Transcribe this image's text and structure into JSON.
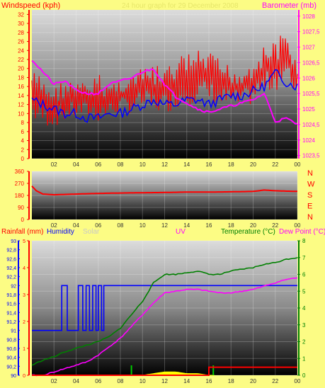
{
  "header": {
    "windspeed_label": "Windspeed (kph)",
    "title": "24 hour graph for 29 December 2008",
    "barometer_label": "Barometer (mb)"
  },
  "bottom_legend": {
    "rainfall": "Rainfall (mm)",
    "humidity": "Humidity",
    "solar": "Solar",
    "uv": "UV",
    "temperature": "Temperature (°C)",
    "dewpoint": "Dew Point (°C)"
  },
  "colors": {
    "background": "#fcfc84",
    "windspeed": "#ff0000",
    "wind_average": "#0000ff",
    "barometer": "#ff00ff",
    "wind_direction": "#ff0000",
    "rainfall": "#ff0000",
    "humidity": "#0000ff",
    "uv": "#ffff00",
    "temperature": "#008000",
    "dewpoint": "#ff00ff",
    "solar": "#c8c8c8"
  },
  "x_ticks": [
    "02",
    "04",
    "06",
    "08",
    "10",
    "12",
    "14",
    "16",
    "18",
    "20",
    "22",
    "00"
  ],
  "chart_data": [
    {
      "type": "line",
      "name": "wind-and-pressure",
      "x_hours": [
        0,
        1,
        2,
        3,
        4,
        5,
        6,
        7,
        8,
        9,
        10,
        11,
        12,
        13,
        14,
        15,
        16,
        17,
        18,
        19,
        20,
        21,
        22,
        23,
        24
      ],
      "series": [
        {
          "name": "Windspeed (kph)",
          "axis": "left",
          "gust_high": [
            20,
            18,
            16,
            18,
            17,
            17,
            19,
            17,
            18,
            19,
            20,
            21,
            20,
            22,
            24,
            24,
            24,
            22,
            21,
            20,
            23,
            25,
            27,
            28,
            22
          ],
          "gust_low": [
            8,
            7,
            7,
            8,
            9,
            9,
            8,
            9,
            10,
            10,
            11,
            10,
            10,
            11,
            12,
            12,
            12,
            11,
            11,
            11,
            12,
            14,
            15,
            16,
            14
          ]
        },
        {
          "name": "Wind average",
          "axis": "left",
          "values": [
            13,
            12,
            11,
            10,
            10,
            9,
            9,
            10,
            10,
            11,
            12,
            13,
            12,
            12,
            13,
            13,
            12,
            13,
            14,
            14,
            15,
            16,
            19,
            17,
            16
          ]
        },
        {
          "name": "Barometer (mb)",
          "axis": "right",
          "values": [
            1026.6,
            1026.2,
            1025.8,
            1025.9,
            1025.6,
            1025.5,
            1025.5,
            1025.8,
            1025.9,
            1026.0,
            1026.2,
            1026.3,
            1025.8,
            1025.4,
            1025.2,
            1025.0,
            1024.9,
            1025.0,
            1025.1,
            1025.2,
            1025.3,
            1025.5,
            1024.6,
            1024.7,
            1024.5
          ]
        }
      ],
      "y_left_ticks": [
        "0",
        "2",
        "4",
        "6",
        "8",
        "10",
        "12",
        "14",
        "16",
        "18",
        "20",
        "22",
        "24",
        "26",
        "28",
        "30",
        "32"
      ],
      "y_right_ticks": [
        "1023,5",
        "1024",
        "1024,5",
        "1025",
        "1025,5",
        "1026",
        "1026,5",
        "1027",
        "1027,5",
        "1028"
      ],
      "ylim_left": [
        0,
        33
      ],
      "ylim_right": [
        1023.4,
        1028.2
      ]
    },
    {
      "type": "line",
      "name": "wind-direction",
      "x_hours": [
        0,
        0.4,
        1,
        2,
        4,
        6,
        8,
        10,
        12,
        14,
        16,
        18,
        20,
        21,
        22,
        23,
        24
      ],
      "series": [
        {
          "name": "Wind direction",
          "values": [
            250,
            215,
            190,
            185,
            190,
            195,
            198,
            200,
            202,
            205,
            205,
            207,
            210,
            220,
            215,
            212,
            210
          ]
        }
      ],
      "y_ticks": [
        "0",
        "90",
        "180",
        "270",
        "360"
      ],
      "compass_labels": [
        "N",
        "W",
        "S",
        "E",
        "N"
      ],
      "ylim": [
        0,
        360
      ]
    },
    {
      "type": "line",
      "name": "rain-humidity-temperature",
      "x_hours": [
        0,
        1,
        2,
        3,
        4,
        5,
        6,
        7,
        8,
        9,
        10,
        11,
        12,
        13,
        14,
        15,
        16,
        17,
        18,
        19,
        20,
        21,
        22,
        23,
        24
      ],
      "series": [
        {
          "name": "Humidity",
          "axis": "humidity",
          "values": [
            91,
            91,
            91,
            92,
            91,
            92,
            91,
            92,
            92,
            92,
            92,
            92,
            92,
            92,
            92,
            92,
            92,
            92,
            92,
            92,
            92,
            92,
            92,
            92,
            92
          ]
        },
        {
          "name": "Temperature (°C)",
          "axis": "right",
          "values": [
            0.6,
            0.9,
            1.1,
            1.4,
            1.6,
            1.8,
            2.0,
            2.3,
            2.8,
            3.6,
            4.4,
            5.5,
            6.0,
            6.0,
            6.1,
            6.2,
            6.0,
            6.0,
            6.2,
            6.3,
            6.4,
            6.6,
            6.7,
            6.9,
            7.0
          ]
        },
        {
          "name": "Dew Point (°C)",
          "axis": "right",
          "values": [
            0.0,
            0.0,
            0.2,
            0.4,
            0.6,
            0.8,
            1.2,
            1.7,
            2.2,
            2.9,
            3.6,
            4.3,
            4.9,
            5.0,
            5.1,
            5.1,
            5.0,
            4.9,
            4.9,
            5.0,
            5.1,
            5.3,
            5.5,
            5.7,
            5.8
          ]
        },
        {
          "name": "Rainfall (mm)",
          "axis": "rain",
          "values": [
            0,
            0,
            0,
            0,
            0,
            0,
            0,
            0,
            0,
            0,
            0,
            0,
            0,
            0,
            0,
            0,
            0.3,
            0.3,
            0.3,
            0.3,
            0.3,
            0.3,
            0.3,
            0.3,
            0.3
          ]
        },
        {
          "name": "UV",
          "axis": "right",
          "values": [
            0,
            0,
            0,
            0,
            0,
            0,
            0,
            0,
            0,
            0,
            0,
            0.1,
            0.2,
            0.2,
            0.1,
            0.1,
            0,
            0,
            0,
            0,
            0,
            0,
            0,
            0,
            0
          ]
        }
      ],
      "y_humidity_ticks": [
        "90",
        "90,2",
        "90,4",
        "90,6",
        "90,8",
        "91",
        "91,2",
        "91,4",
        "91,6",
        "91,8",
        "92",
        "92,2",
        "92,4",
        "92,6",
        "92,8",
        "93"
      ],
      "y_rain_ticks": [
        "0",
        "1",
        "2",
        "3",
        "4",
        "5"
      ],
      "y_right_ticks": [
        "0",
        "1",
        "2",
        "3",
        "4",
        "5",
        "6",
        "7",
        "8"
      ],
      "ylim_humidity": [
        90,
        93
      ],
      "ylim_rain": [
        0,
        5
      ],
      "ylim_right": [
        0,
        8
      ]
    }
  ]
}
